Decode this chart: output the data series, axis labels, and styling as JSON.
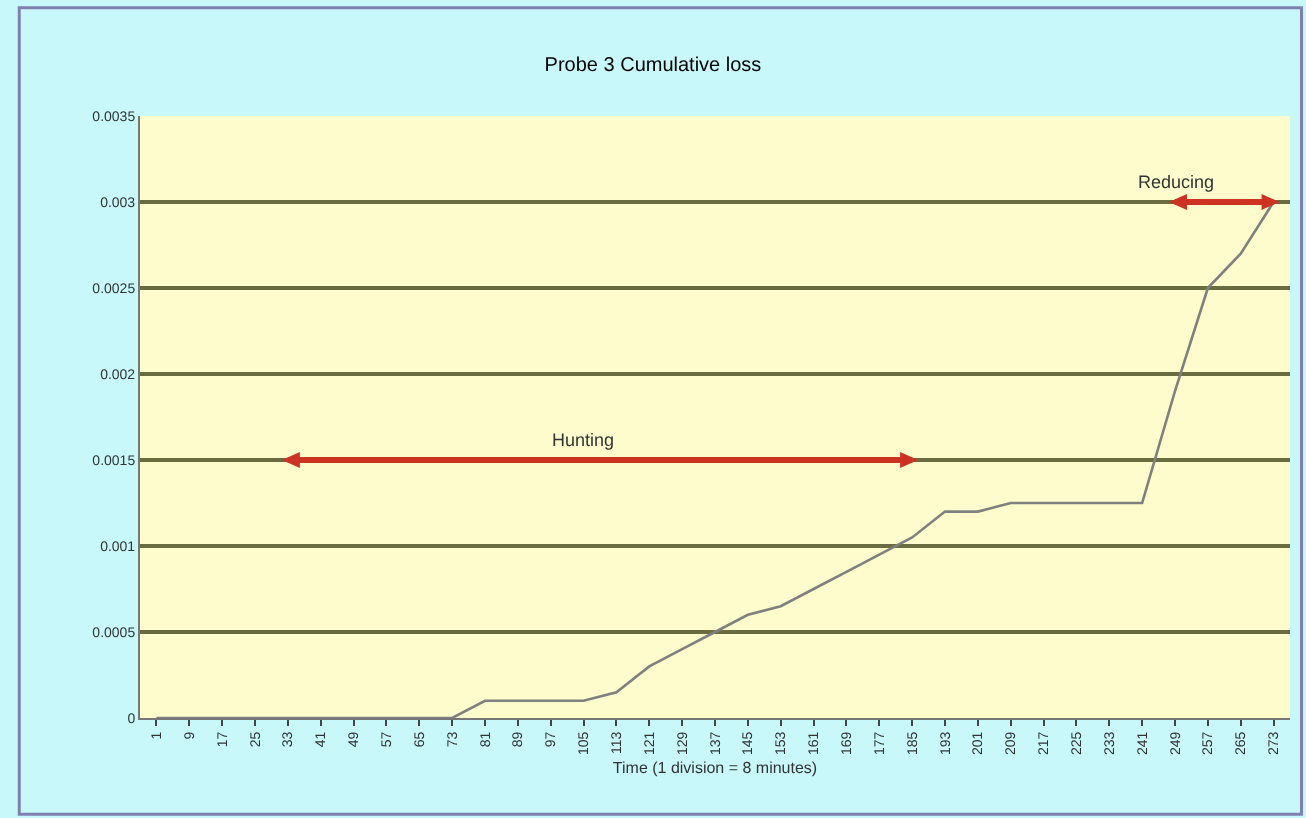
{
  "chart_data": {
    "type": "line",
    "title": "Probe 3 Cumulative loss",
    "xlabel": "Time (1 division = 8 minutes)",
    "categories": [
      "1",
      "9",
      "17",
      "25",
      "33",
      "41",
      "49",
      "57",
      "65",
      "73",
      "81",
      "89",
      "97",
      "105",
      "113",
      "121",
      "129",
      "137",
      "145",
      "153",
      "161",
      "169",
      "177",
      "185",
      "193",
      "201",
      "209",
      "217",
      "225",
      "233",
      "241",
      "249",
      "257",
      "265",
      "273"
    ],
    "series": [
      {
        "color": "#808080",
        "values": [
          0,
          0,
          0,
          0,
          0,
          0,
          0,
          0,
          0,
          0,
          0.0001,
          0.0001,
          0.0001,
          0.0001,
          0.00015,
          0.0003,
          0.0004,
          0.0005,
          0.0006,
          0.00065,
          0.00075,
          0.00085,
          0.00095,
          0.00105,
          0.0012,
          0.0012,
          0.00125,
          0.00125,
          0.00125,
          0.00125,
          0.00125,
          0.0019,
          0.0025,
          0.0027,
          0.003
        ]
      },
      {
        "color": "#cc3322",
        "marker": "triangle",
        "values": [
          null,
          null,
          null,
          null,
          0.0015,
          null,
          null,
          null,
          null,
          null,
          null,
          null,
          null,
          null,
          null,
          null,
          null,
          null,
          null,
          null,
          null,
          null,
          null,
          0.0015,
          null,
          null,
          null,
          null,
          null,
          null,
          null,
          null,
          null,
          null,
          null
        ]
      },
      {
        "color": "#cc3322",
        "marker": "triangle",
        "values": [
          null,
          null,
          null,
          null,
          null,
          null,
          null,
          null,
          null,
          null,
          null,
          null,
          null,
          null,
          null,
          null,
          null,
          null,
          null,
          null,
          null,
          null,
          null,
          null,
          null,
          null,
          null,
          null,
          null,
          null,
          null,
          0.003,
          null,
          null,
          0.003
        ]
      }
    ],
    "annotations": [
      {
        "text": "Hunting",
        "x": "105",
        "y": 0.0015
      },
      {
        "text": "Reducing",
        "x": "249",
        "y": 0.003
      }
    ],
    "ylim": [
      0,
      0.0035
    ],
    "yticks": [
      0,
      0.0005,
      0.001,
      0.0015,
      0.002,
      0.0025,
      0.003,
      0.0035
    ],
    "grid": "y",
    "marker": "none",
    "line_style": "solid"
  }
}
